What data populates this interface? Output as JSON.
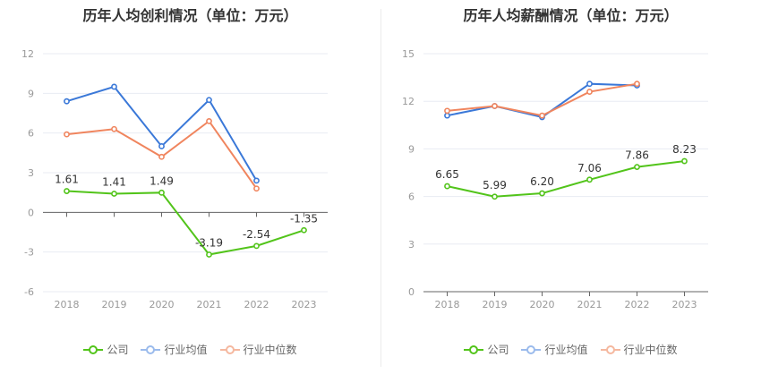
{
  "chart_data": [
    {
      "type": "line",
      "title": "历年人均创利情况（单位：万元）",
      "categories": [
        "2018",
        "2019",
        "2020",
        "2021",
        "2022",
        "2023"
      ],
      "y_ticks": [
        "12",
        "9",
        "6",
        "3",
        "0",
        "-3",
        "-6"
      ],
      "ylim": [
        -6,
        12
      ],
      "series": [
        {
          "name": "公司",
          "color": "#52c41a",
          "values": [
            1.61,
            1.41,
            1.49,
            -3.19,
            -2.54,
            -1.35
          ],
          "labels": [
            "1.61",
            "1.41",
            "1.49",
            "-3.19",
            "-2.54",
            "-1.35"
          ]
        },
        {
          "name": "行业均值",
          "color": "#3a78d8",
          "values": [
            8.4,
            9.5,
            5.0,
            8.5,
            2.4,
            null
          ],
          "labels": []
        },
        {
          "name": "行业中位数",
          "color": "#f0855e",
          "values": [
            5.9,
            6.3,
            4.2,
            6.9,
            1.8,
            null
          ],
          "labels": []
        }
      ],
      "grid": true,
      "legend": "bottom"
    },
    {
      "type": "line",
      "title": "历年人均薪酬情况（单位：万元）",
      "categories": [
        "2018",
        "2019",
        "2020",
        "2021",
        "2022",
        "2023"
      ],
      "y_ticks": [
        "15",
        "12",
        "9",
        "6",
        "3",
        "0"
      ],
      "ylim": [
        0,
        15
      ],
      "series": [
        {
          "name": "公司",
          "color": "#52c41a",
          "values": [
            6.65,
            5.99,
            6.2,
            7.06,
            7.86,
            8.23
          ],
          "labels": [
            "6.65",
            "5.99",
            "6.20",
            "7.06",
            "7.86",
            "8.23"
          ]
        },
        {
          "name": "行业均值",
          "color": "#3a78d8",
          "values": [
            11.1,
            11.7,
            11.0,
            13.1,
            13.0,
            null
          ],
          "labels": []
        },
        {
          "name": "行业中位数",
          "color": "#f0855e",
          "values": [
            11.4,
            11.7,
            11.1,
            12.6,
            13.1,
            null
          ],
          "labels": []
        }
      ],
      "grid": true,
      "legend": "bottom"
    }
  ]
}
